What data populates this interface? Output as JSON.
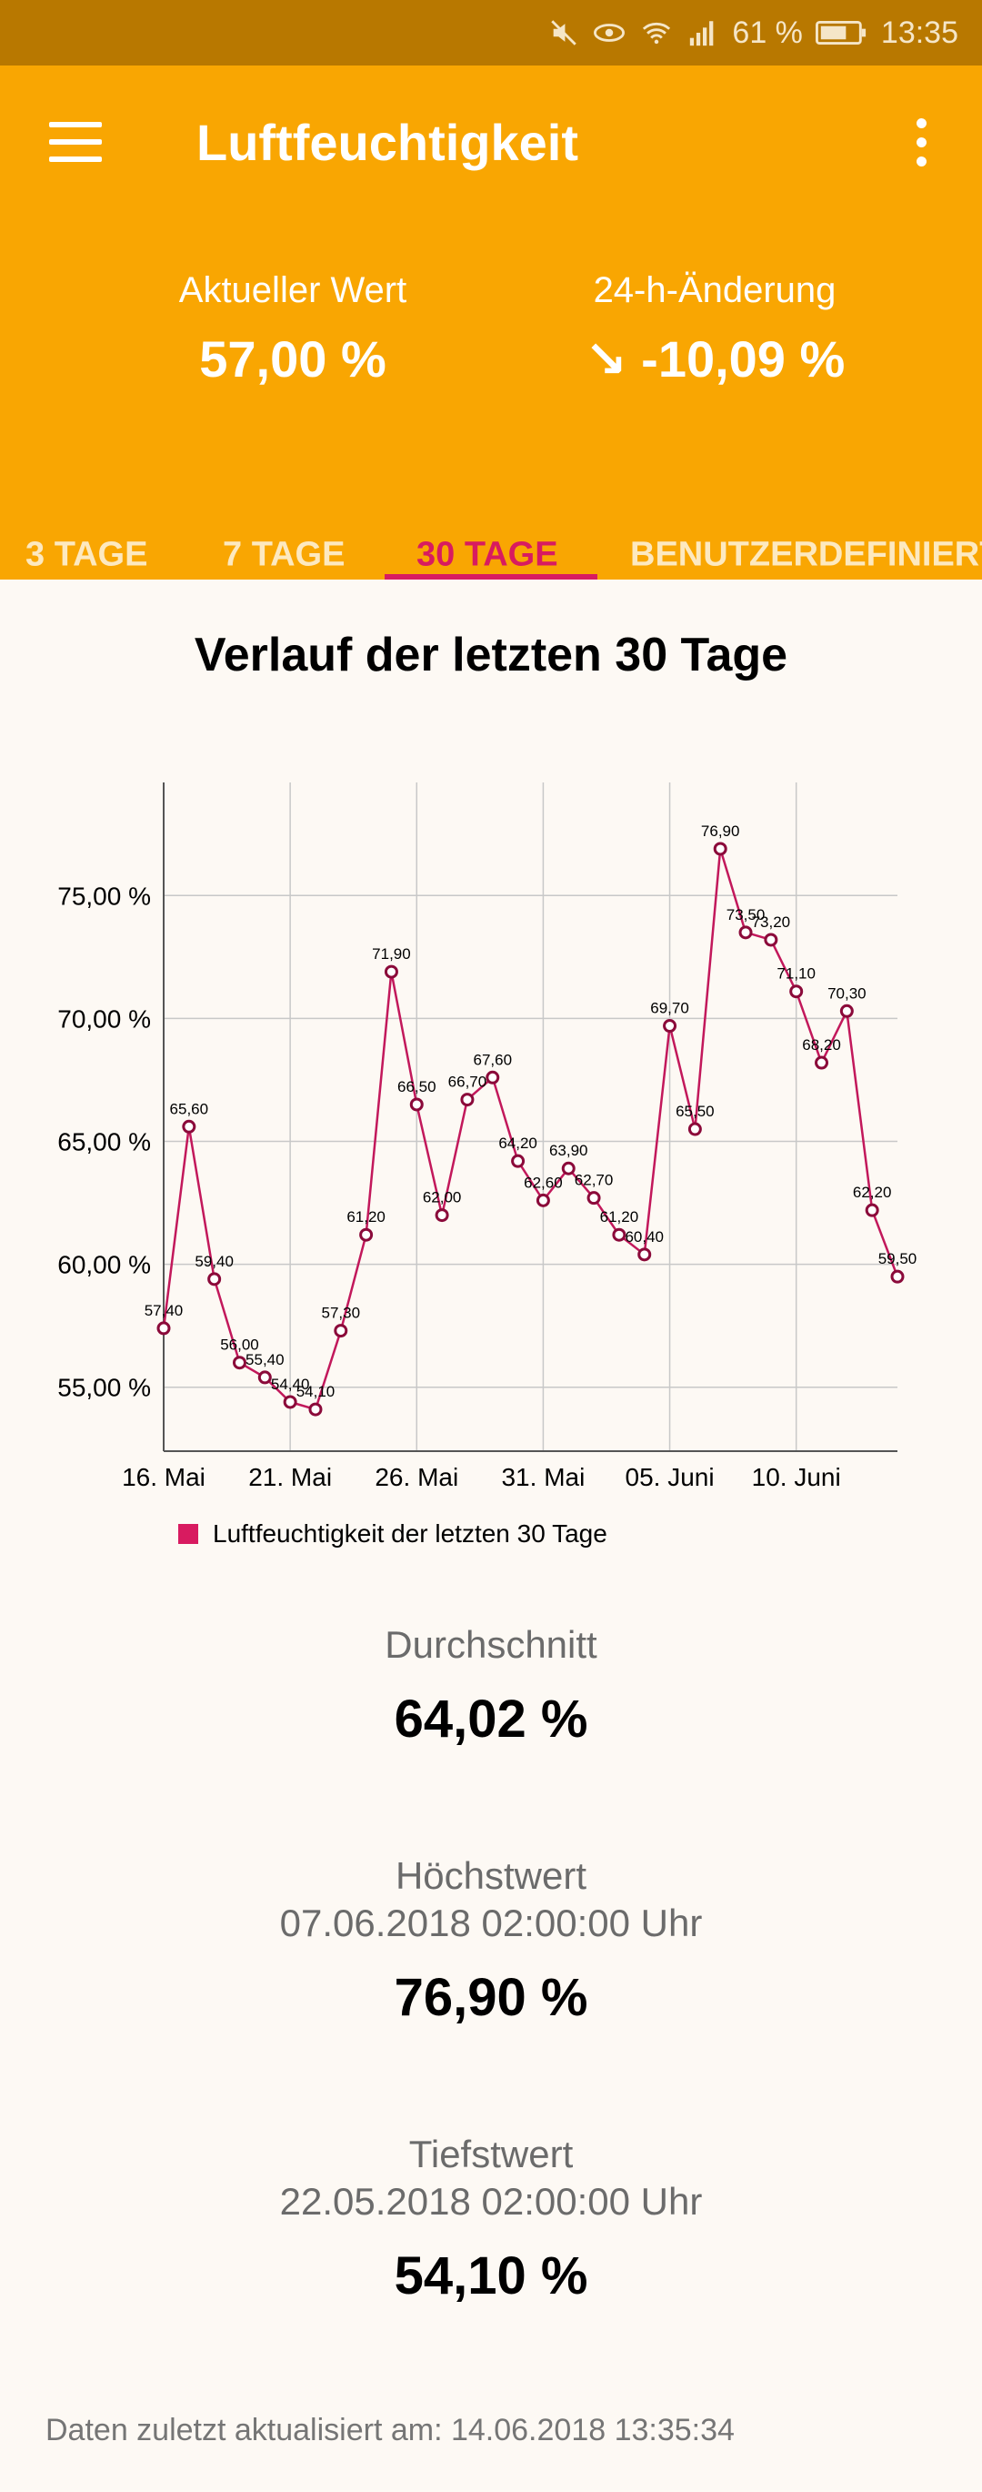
{
  "status_bar": {
    "battery": "61 %",
    "time": "13:35",
    "icons": [
      "mute-icon",
      "eye-icon",
      "wifi-icon",
      "signal-icon",
      "battery-icon"
    ]
  },
  "app_bar": {
    "title": "Luftfeuchtigkeit",
    "current_label": "Aktueller Wert",
    "current_value": "57,00 %",
    "change_label": "24-h-Änderung",
    "change_value": "↘ -10,09 %",
    "color": "#f9a602"
  },
  "tabs": [
    {
      "label": "3 TAGE"
    },
    {
      "label": "7 TAGE"
    },
    {
      "label": "30 TAGE",
      "active": true
    },
    {
      "label": "BENUTZERDEFINIERT"
    }
  ],
  "chart_data": {
    "type": "line",
    "title": "Verlauf der letzten 30 Tage",
    "x_tick_labels": [
      "16. Mai",
      "21. Mai",
      "26. Mai",
      "31. Mai",
      "05. Juni",
      "10. Juni"
    ],
    "y_tick_labels": [
      "75,00 %",
      "70,00 %",
      "65,00 %",
      "60,00 %",
      "55,00 %"
    ],
    "y_ticks": [
      75,
      70,
      65,
      60,
      55
    ],
    "ylim": [
      52.4,
      79.6
    ],
    "grid": true,
    "legend_position": "bottom-left",
    "series": [
      {
        "name": "Luftfeuchtigkeit der letzten 30 Tage",
        "color": "#c2185b",
        "values": [
          57.4,
          65.6,
          59.4,
          56.0,
          55.4,
          54.4,
          54.1,
          57.3,
          61.2,
          71.9,
          66.5,
          62.0,
          66.7,
          67.6,
          64.2,
          62.6,
          63.9,
          62.7,
          61.2,
          60.4,
          69.7,
          65.5,
          76.9,
          73.5,
          73.2,
          71.1,
          68.2,
          70.3,
          62.2,
          59.5
        ],
        "labels": [
          "57,40",
          "65,60",
          "59,40",
          "56,00",
          "55,40",
          "54,40",
          "54,10",
          "57,30",
          "61,20",
          "71,90",
          "66,50",
          "62,00",
          "66,70",
          "67,60",
          "64,20",
          "62,60",
          "63,90",
          "62,70",
          "61,20",
          "60,40",
          "69,70",
          "65,50",
          "76,90",
          "73,50",
          "73,20",
          "71,10",
          "68,20",
          "70,30",
          "62,20",
          "59,50"
        ]
      }
    ]
  },
  "summary": {
    "avg_label": "Durchschnitt",
    "avg_value": "64,02 %",
    "max_label": "Höchstwert",
    "max_date": "07.06.2018 02:00:00 Uhr",
    "max_value": "76,90 %",
    "min_label": "Tiefstwert",
    "min_date": "22.05.2018 02:00:00 Uhr",
    "min_value": "54,10 %"
  },
  "footer": "Daten zuletzt aktualisiert am: 14.06.2018 13:35:34"
}
